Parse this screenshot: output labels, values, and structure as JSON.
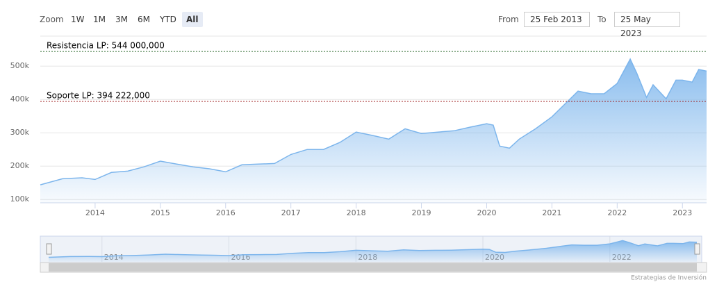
{
  "toolbar": {
    "zoom_label": "Zoom",
    "buttons": [
      "1W",
      "1M",
      "3M",
      "6M",
      "YTD",
      "All"
    ],
    "selected_button": 5,
    "from_label": "From",
    "from": "25 Feb 2013",
    "to_label": "To",
    "to": "25 May 2023"
  },
  "chart_data": {
    "type": "area",
    "color": "#7cb5ec",
    "x": [
      2013.16,
      2013.5,
      2013.8,
      2014,
      2014.25,
      2014.5,
      2014.75,
      2015,
      2015.25,
      2015.5,
      2015.75,
      2016,
      2016.25,
      2016.5,
      2016.75,
      2017,
      2017.25,
      2017.5,
      2017.75,
      2018,
      2018.25,
      2018.5,
      2018.75,
      2019,
      2019.25,
      2019.5,
      2019.75,
      2020,
      2020.1,
      2020.2,
      2020.35,
      2020.5,
      2020.75,
      2021,
      2021.25,
      2021.4,
      2021.6,
      2021.8,
      2022,
      2022.2,
      2022.3,
      2022.45,
      2022.55,
      2022.75,
      2022.9,
      2023,
      2023.15,
      2023.25,
      2023.37
    ],
    "values": [
      144000,
      162000,
      165000,
      160000,
      181000,
      185000,
      198000,
      215000,
      206000,
      198000,
      192000,
      183000,
      204000,
      206000,
      208000,
      235000,
      250000,
      250000,
      271000,
      302000,
      292000,
      281000,
      312000,
      298000,
      302000,
      306000,
      317000,
      327000,
      323000,
      260000,
      254000,
      281000,
      312000,
      348000,
      396000,
      425000,
      417000,
      417000,
      448000,
      521000,
      479000,
      406000,
      444000,
      402000,
      458000,
      458000,
      452000,
      490000,
      485000
    ],
    "xlim": [
      2013.16,
      2023.37
    ],
    "xticks": [
      2014,
      2015,
      2016,
      2017,
      2018,
      2019,
      2020,
      2021,
      2022,
      2023
    ],
    "ylim": [
      90000,
      590000
    ],
    "yticks": [
      {
        "value": 100000,
        "label": "100k"
      },
      {
        "value": 200000,
        "label": "200k"
      },
      {
        "value": 300000,
        "label": "300k"
      },
      {
        "value": 400000,
        "label": "400k"
      },
      {
        "value": 500000,
        "label": "500k"
      }
    ],
    "grid": true,
    "plot_lines": [
      {
        "label": "Resistencia LP: 544 000,000",
        "value": 544000,
        "color": "#2e6b2e"
      },
      {
        "label": "Soporte LP: 394 222,000",
        "value": 394222,
        "color": "#a02020"
      }
    ],
    "navigator_xticks": [
      2014,
      2016,
      2018,
      2020,
      2022
    ]
  },
  "credits": "Estrategias de Inversión"
}
